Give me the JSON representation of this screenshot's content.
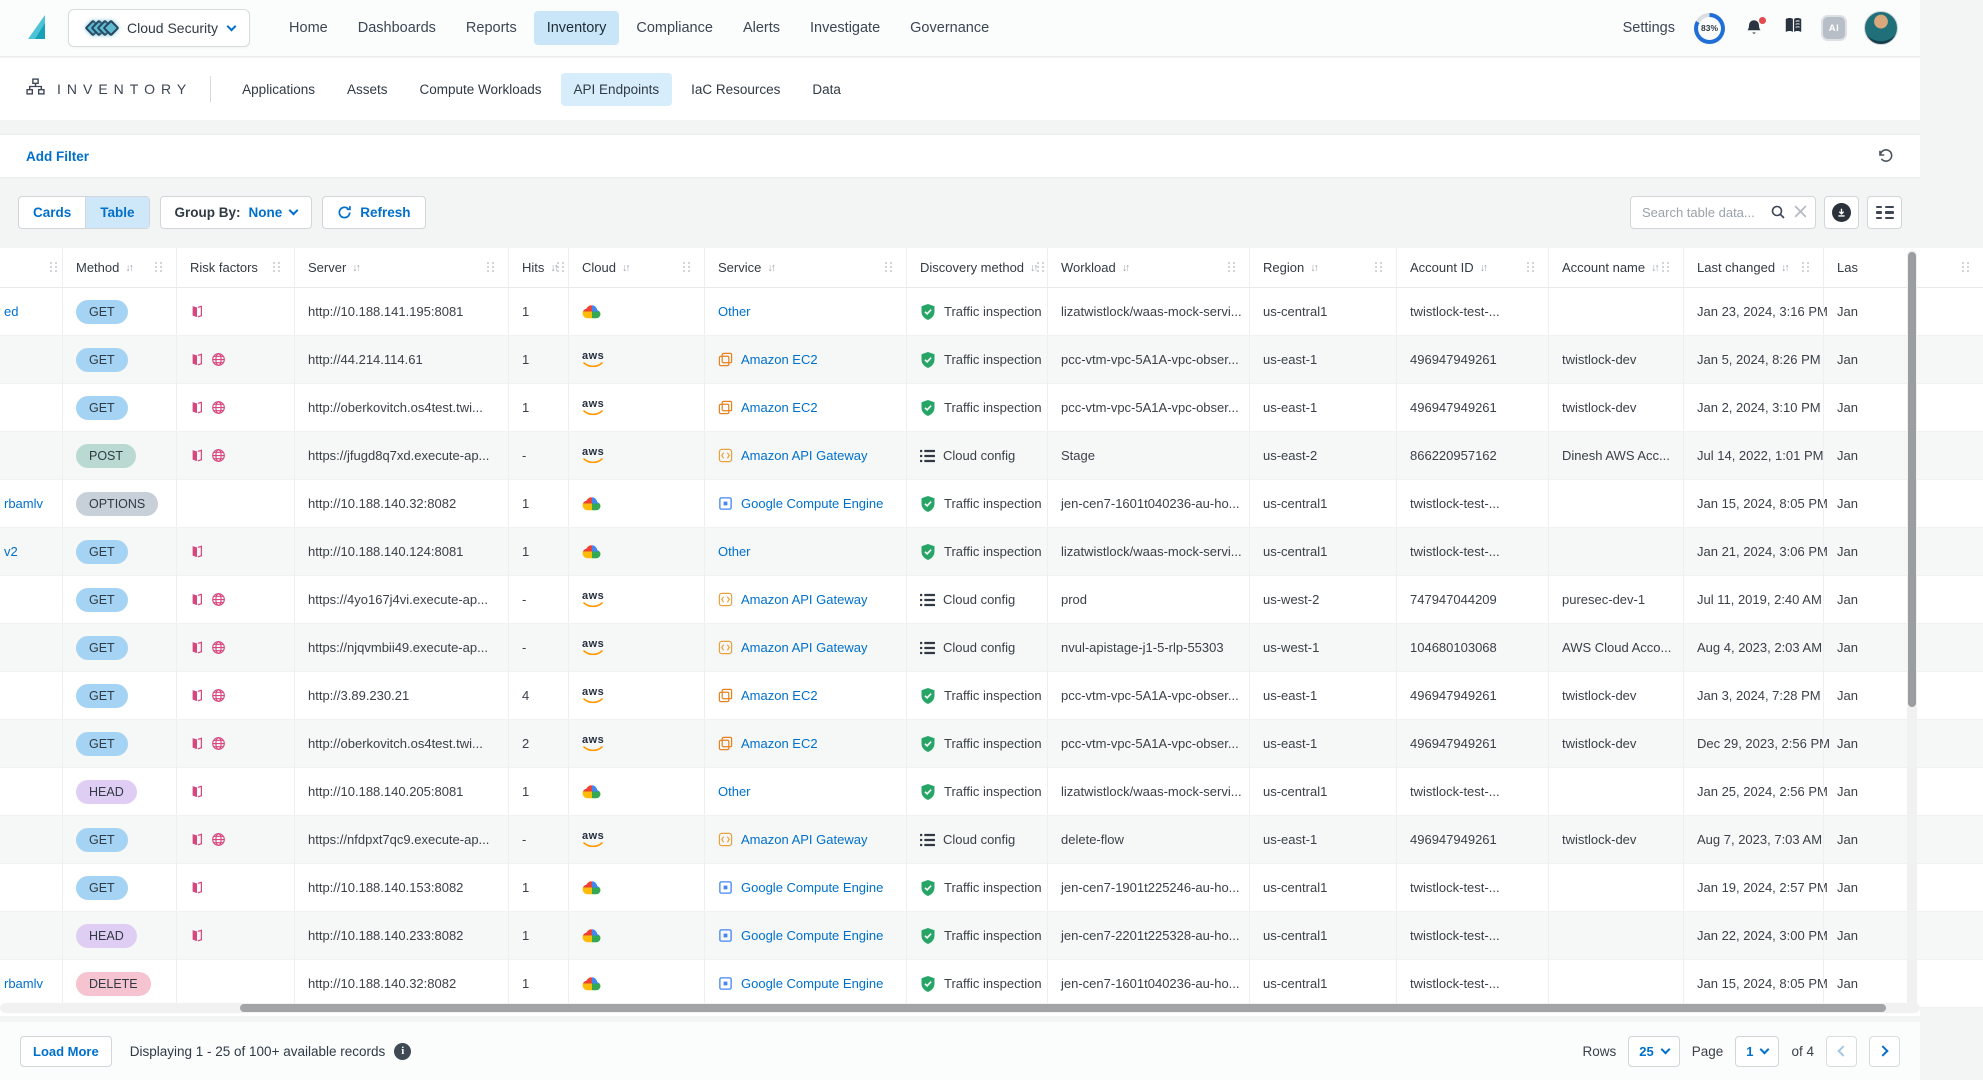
{
  "colors": {
    "accent_blue": "#0070cc",
    "active_pill_bg": "#c9e6f8",
    "risk_pink": "#d6477e",
    "shield_green": "#27a567",
    "aws_orange": "#ff9900",
    "gcp": [
      "#ea4335",
      "#4285f4",
      "#fbbc05",
      "#34a853"
    ]
  },
  "topnav": {
    "product": "Cloud Security",
    "items": [
      {
        "label": "Home"
      },
      {
        "label": "Dashboards"
      },
      {
        "label": "Reports"
      },
      {
        "label": "Inventory"
      },
      {
        "label": "Compliance"
      },
      {
        "label": "Alerts"
      },
      {
        "label": "Investigate"
      },
      {
        "label": "Governance"
      }
    ],
    "active": "Inventory",
    "settings_label": "Settings",
    "usage_percent": "83%"
  },
  "subnav": {
    "title": "INVENTORY",
    "tabs": [
      {
        "label": "Applications"
      },
      {
        "label": "Assets"
      },
      {
        "label": "Compute Workloads"
      },
      {
        "label": "API Endpoints"
      },
      {
        "label": "IaC Resources"
      },
      {
        "label": "Data"
      }
    ],
    "active": "API Endpoints"
  },
  "filterbar": {
    "add_filter": "Add Filter"
  },
  "toolbar": {
    "cards": "Cards",
    "table": "Table",
    "active_view": "Table",
    "group_by_label": "Group By:",
    "group_by_value": "None",
    "refresh": "Refresh",
    "search_placeholder": "Search table data..."
  },
  "table": {
    "columns": [
      {
        "key": "edge",
        "label": "",
        "sortable": false
      },
      {
        "key": "method",
        "label": "Method",
        "sortable": true
      },
      {
        "key": "risks",
        "label": "Risk factors",
        "sortable": false
      },
      {
        "key": "server",
        "label": "Server",
        "sortable": true
      },
      {
        "key": "hits",
        "label": "Hits",
        "sortable": true
      },
      {
        "key": "cloud",
        "label": "Cloud",
        "sortable": true
      },
      {
        "key": "service",
        "label": "Service",
        "sortable": true
      },
      {
        "key": "discovery",
        "label": "Discovery method",
        "sortable": true
      },
      {
        "key": "workload",
        "label": "Workload",
        "sortable": true
      },
      {
        "key": "region",
        "label": "Region",
        "sortable": true
      },
      {
        "key": "account_id",
        "label": "Account ID",
        "sortable": true
      },
      {
        "key": "account_name",
        "label": "Account name",
        "sortable": true
      },
      {
        "key": "last_changed",
        "label": "Last changed",
        "sortable": true
      },
      {
        "key": "last_seen",
        "label": "Las",
        "sortable": false
      }
    ],
    "method_colors": {
      "GET": "#a5d3f3",
      "POST": "#b9d9d2",
      "OPTIONS": "#c7cfd9",
      "HEAD": "#e0cdf3",
      "DELETE": "#f6c4d1"
    },
    "rows": [
      {
        "edge": "ed",
        "method": "GET",
        "risks": [
          "unauthenticated"
        ],
        "server": "http://10.188.141.195:8081",
        "hits": "1",
        "cloud": "gcp",
        "service": "Other",
        "service_icon": "",
        "discovery": "Traffic inspection",
        "discovery_icon": "shield",
        "workload": "lizatwistlock/waas-mock-servi...",
        "region": "us-central1",
        "account_id": "twistlock-test-...",
        "account_name": "",
        "last_changed": "Jan 23, 2024, 3:16 PM",
        "last_seen": "Jan"
      },
      {
        "edge": "",
        "method": "GET",
        "risks": [
          "unauthenticated",
          "internet"
        ],
        "server": "http://44.214.114.61",
        "hits": "1",
        "cloud": "aws",
        "service": "Amazon EC2",
        "service_icon": "ec2",
        "discovery": "Traffic inspection",
        "discovery_icon": "shield",
        "workload": "pcc-vtm-vpc-5A1A-vpc-obser...",
        "region": "us-east-1",
        "account_id": "496947949261",
        "account_name": "twistlock-dev",
        "last_changed": "Jan 5, 2024, 8:26 PM",
        "last_seen": "Jan"
      },
      {
        "edge": "",
        "method": "GET",
        "risks": [
          "unauthenticated",
          "internet"
        ],
        "server": "http://oberkovitch.os4test.twi...",
        "hits": "1",
        "cloud": "aws",
        "service": "Amazon EC2",
        "service_icon": "ec2",
        "discovery": "Traffic inspection",
        "discovery_icon": "shield",
        "workload": "pcc-vtm-vpc-5A1A-vpc-obser...",
        "region": "us-east-1",
        "account_id": "496947949261",
        "account_name": "twistlock-dev",
        "last_changed": "Jan 2, 2024, 3:10 PM",
        "last_seen": "Jan"
      },
      {
        "edge": "",
        "method": "POST",
        "risks": [
          "unauthenticated",
          "internet"
        ],
        "server": "https://jfugd8q7xd.execute-ap...",
        "hits": "-",
        "cloud": "aws",
        "service": "Amazon API Gateway",
        "service_icon": "apigw",
        "discovery": "Cloud config",
        "discovery_icon": "list",
        "workload": "Stage",
        "region": "us-east-2",
        "account_id": "866220957162",
        "account_name": "Dinesh AWS Acc...",
        "last_changed": "Jul 14, 2022, 1:01 PM",
        "last_seen": "Jan"
      },
      {
        "edge": "rbamlv",
        "method": "OPTIONS",
        "risks": [],
        "server": "http://10.188.140.32:8082",
        "hits": "1",
        "cloud": "gcp",
        "service": "Google Compute Engine",
        "service_icon": "gce",
        "discovery": "Traffic inspection",
        "discovery_icon": "shield",
        "workload": "jen-cen7-1601t040236-au-ho...",
        "region": "us-central1",
        "account_id": "twistlock-test-...",
        "account_name": "",
        "last_changed": "Jan 15, 2024, 8:05 PM",
        "last_seen": "Jan"
      },
      {
        "edge": "v2",
        "method": "GET",
        "risks": [
          "unauthenticated"
        ],
        "server": "http://10.188.140.124:8081",
        "hits": "1",
        "cloud": "gcp",
        "service": "Other",
        "service_icon": "",
        "discovery": "Traffic inspection",
        "discovery_icon": "shield",
        "workload": "lizatwistlock/waas-mock-servi...",
        "region": "us-central1",
        "account_id": "twistlock-test-...",
        "account_name": "",
        "last_changed": "Jan 21, 2024, 3:06 PM",
        "last_seen": "Jan"
      },
      {
        "edge": "",
        "method": "GET",
        "risks": [
          "unauthenticated",
          "internet"
        ],
        "server": "https://4yo167j4vi.execute-ap...",
        "hits": "-",
        "cloud": "aws",
        "service": "Amazon API Gateway",
        "service_icon": "apigw",
        "discovery": "Cloud config",
        "discovery_icon": "list",
        "workload": "prod",
        "region": "us-west-2",
        "account_id": "747947044209",
        "account_name": "puresec-dev-1",
        "last_changed": "Jul 11, 2019, 2:40 AM",
        "last_seen": "Jan"
      },
      {
        "edge": "",
        "method": "GET",
        "risks": [
          "unauthenticated",
          "internet"
        ],
        "server": "https://njqvmbii49.execute-ap...",
        "hits": "-",
        "cloud": "aws",
        "service": "Amazon API Gateway",
        "service_icon": "apigw",
        "discovery": "Cloud config",
        "discovery_icon": "list",
        "workload": "nvul-apistage-j1-5-rlp-55303",
        "region": "us-west-1",
        "account_id": "104680103068",
        "account_name": "AWS Cloud Acco...",
        "last_changed": "Aug 4, 2023, 2:03 AM",
        "last_seen": "Jan"
      },
      {
        "edge": "",
        "method": "GET",
        "risks": [
          "unauthenticated",
          "internet"
        ],
        "server": "http://3.89.230.21",
        "hits": "4",
        "cloud": "aws",
        "service": "Amazon EC2",
        "service_icon": "ec2",
        "discovery": "Traffic inspection",
        "discovery_icon": "shield",
        "workload": "pcc-vtm-vpc-5A1A-vpc-obser...",
        "region": "us-east-1",
        "account_id": "496947949261",
        "account_name": "twistlock-dev",
        "last_changed": "Jan 3, 2024, 7:28 PM",
        "last_seen": "Jan"
      },
      {
        "edge": "",
        "method": "GET",
        "risks": [
          "unauthenticated",
          "internet"
        ],
        "server": "http://oberkovitch.os4test.twi...",
        "hits": "2",
        "cloud": "aws",
        "service": "Amazon EC2",
        "service_icon": "ec2",
        "discovery": "Traffic inspection",
        "discovery_icon": "shield",
        "workload": "pcc-vtm-vpc-5A1A-vpc-obser...",
        "region": "us-east-1",
        "account_id": "496947949261",
        "account_name": "twistlock-dev",
        "last_changed": "Dec 29, 2023, 2:56 PM",
        "last_seen": "Jan"
      },
      {
        "edge": "",
        "method": "HEAD",
        "risks": [
          "unauthenticated"
        ],
        "server": "http://10.188.140.205:8081",
        "hits": "1",
        "cloud": "gcp",
        "service": "Other",
        "service_icon": "",
        "discovery": "Traffic inspection",
        "discovery_icon": "shield",
        "workload": "lizatwistlock/waas-mock-servi...",
        "region": "us-central1",
        "account_id": "twistlock-test-...",
        "account_name": "",
        "last_changed": "Jan 25, 2024, 2:56 PM",
        "last_seen": "Jan"
      },
      {
        "edge": "",
        "method": "GET",
        "risks": [
          "unauthenticated",
          "internet"
        ],
        "server": "https://nfdpxt7qc9.execute-ap...",
        "hits": "-",
        "cloud": "aws",
        "service": "Amazon API Gateway",
        "service_icon": "apigw",
        "discovery": "Cloud config",
        "discovery_icon": "list",
        "workload": "delete-flow",
        "region": "us-east-1",
        "account_id": "496947949261",
        "account_name": "twistlock-dev",
        "last_changed": "Aug 7, 2023, 7:03 AM",
        "last_seen": "Jan"
      },
      {
        "edge": "",
        "method": "GET",
        "risks": [
          "unauthenticated"
        ],
        "server": "http://10.188.140.153:8082",
        "hits": "1",
        "cloud": "gcp",
        "service": "Google Compute Engine",
        "service_icon": "gce",
        "discovery": "Traffic inspection",
        "discovery_icon": "shield",
        "workload": "jen-cen7-1901t225246-au-ho...",
        "region": "us-central1",
        "account_id": "twistlock-test-...",
        "account_name": "",
        "last_changed": "Jan 19, 2024, 2:57 PM",
        "last_seen": "Jan"
      },
      {
        "edge": "",
        "method": "HEAD",
        "risks": [
          "unauthenticated"
        ],
        "server": "http://10.188.140.233:8082",
        "hits": "1",
        "cloud": "gcp",
        "service": "Google Compute Engine",
        "service_icon": "gce",
        "discovery": "Traffic inspection",
        "discovery_icon": "shield",
        "workload": "jen-cen7-2201t225328-au-ho...",
        "region": "us-central1",
        "account_id": "twistlock-test-...",
        "account_name": "",
        "last_changed": "Jan 22, 2024, 3:00 PM",
        "last_seen": "Jan"
      },
      {
        "edge": "rbamlv",
        "method": "DELETE",
        "risks": [],
        "server": "http://10.188.140.32:8082",
        "hits": "1",
        "cloud": "gcp",
        "service": "Google Compute Engine",
        "service_icon": "gce",
        "discovery": "Traffic inspection",
        "discovery_icon": "shield",
        "workload": "jen-cen7-1601t040236-au-ho...",
        "region": "us-central1",
        "account_id": "twistlock-test-...",
        "account_name": "",
        "last_changed": "Jan 15, 2024, 8:05 PM",
        "last_seen": "Jan"
      }
    ]
  },
  "footer": {
    "load_more": "Load More",
    "summary": "Displaying 1 - 25 of 100+ available records",
    "rows_label": "Rows",
    "rows_value": "25",
    "page_label": "Page",
    "page_value": "1",
    "of_label": "of 4"
  }
}
